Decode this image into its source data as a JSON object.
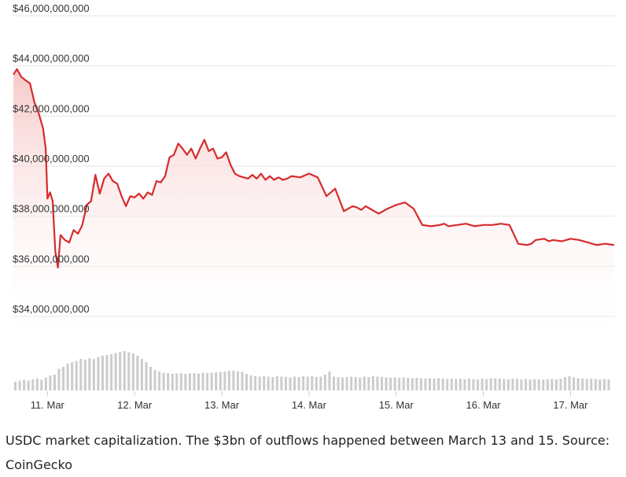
{
  "chart_data": {
    "type": "area",
    "title": "",
    "xlabel": "",
    "ylabel": "",
    "y_ticks": [
      {
        "value": 46000000000,
        "label": "$46,000,000,000"
      },
      {
        "value": 44000000000,
        "label": "$44,000,000,000"
      },
      {
        "value": 42000000000,
        "label": "$42,000,000,000"
      },
      {
        "value": 40000000000,
        "label": "$40,000,000,000"
      },
      {
        "value": 38000000000,
        "label": "$38,000,000,000"
      },
      {
        "value": 36000000000,
        "label": "$36,000,000,000"
      },
      {
        "value": 34000000000,
        "label": "$34,000,000,000"
      }
    ],
    "ylim": [
      32700000000,
      46200000000
    ],
    "x_ticks": [
      {
        "day": 11,
        "label": "11. Mar"
      },
      {
        "day": 12,
        "label": "12. Mar"
      },
      {
        "day": 13,
        "label": "13. Mar"
      },
      {
        "day": 14,
        "label": "14. Mar"
      },
      {
        "day": 15,
        "label": "15. Mar"
      },
      {
        "day": 16,
        "label": "16. Mar"
      },
      {
        "day": 17,
        "label": "17. Mar"
      }
    ],
    "xlim": [
      10.6,
      17.51
    ],
    "grid": true,
    "colors": {
      "line": "#d62c2c",
      "area_top": "#f6c6c6",
      "grid": "#e6e6e6",
      "volume": "#cccccc"
    },
    "series": [
      {
        "x": [
          10.61,
          10.65,
          10.7,
          10.75,
          10.8,
          10.85,
          10.9,
          10.95,
          10.98,
          11.0,
          11.03,
          11.06,
          11.09,
          11.12,
          11.15,
          11.2,
          11.25,
          11.3,
          11.35,
          11.4,
          11.45,
          11.5,
          11.55,
          11.6,
          11.65,
          11.7,
          11.75,
          11.8,
          11.85,
          11.9,
          11.95,
          12.0,
          12.05,
          12.1,
          12.15,
          12.2,
          12.25,
          12.3,
          12.35,
          12.4,
          12.45,
          12.5,
          12.55,
          12.6,
          12.65,
          12.7,
          12.75,
          12.8,
          12.85,
          12.9,
          12.95,
          13.0,
          13.05,
          13.1,
          13.15,
          13.2,
          13.25,
          13.3,
          13.35,
          13.4,
          13.45,
          13.5,
          13.55,
          13.6,
          13.65,
          13.7,
          13.75,
          13.8,
          13.9,
          14.0,
          14.1,
          14.2,
          14.3,
          14.4,
          14.5,
          14.55,
          14.6,
          14.65,
          14.7,
          14.75,
          14.8,
          14.9,
          15.0,
          15.1,
          15.2,
          15.3,
          15.4,
          15.5,
          15.55,
          15.6,
          15.7,
          15.8,
          15.9,
          16.0,
          16.1,
          16.2,
          16.3,
          16.4,
          16.5,
          16.55,
          16.6,
          16.7,
          16.75,
          16.8,
          16.9,
          16.95,
          17.0,
          17.1,
          17.2,
          17.3,
          17.4,
          17.5
        ],
        "y": [
          43650000000,
          43870000000,
          43560000000,
          43420000000,
          43300000000,
          42550000000,
          42100000000,
          41500000000,
          40700000000,
          38700000000,
          38950000000,
          38600000000,
          36600000000,
          35950000000,
          37250000000,
          37050000000,
          36950000000,
          37450000000,
          37300000000,
          37650000000,
          38450000000,
          38600000000,
          39650000000,
          38900000000,
          39500000000,
          39700000000,
          39400000000,
          39300000000,
          38800000000,
          38400000000,
          38800000000,
          38750000000,
          38900000000,
          38700000000,
          38950000000,
          38850000000,
          39400000000,
          39350000000,
          39600000000,
          40350000000,
          40450000000,
          40900000000,
          40700000000,
          40450000000,
          40700000000,
          40300000000,
          40700000000,
          41050000000,
          40600000000,
          40700000000,
          40300000000,
          40350000000,
          40550000000,
          40050000000,
          39700000000,
          39600000000,
          39550000000,
          39500000000,
          39650000000,
          39500000000,
          39700000000,
          39450000000,
          39600000000,
          39450000000,
          39550000000,
          39450000000,
          39500000000,
          39600000000,
          39550000000,
          39700000000,
          39550000000,
          38800000000,
          39100000000,
          38200000000,
          38400000000,
          38350000000,
          38250000000,
          38400000000,
          38300000000,
          38200000000,
          38100000000,
          38300000000,
          38450000000,
          38550000000,
          38300000000,
          37650000000,
          37600000000,
          37650000000,
          37700000000,
          37600000000,
          37650000000,
          37700000000,
          37600000000,
          37650000000,
          37650000000,
          37700000000,
          37650000000,
          36900000000,
          36850000000,
          36900000000,
          37050000000,
          37100000000,
          37000000000,
          37050000000,
          37000000000,
          37050000000,
          37100000000,
          37050000000,
          36950000000,
          36850000000,
          36900000000,
          36850000000
        ]
      }
    ],
    "volume": [
      0.22,
      0.25,
      0.27,
      0.25,
      0.28,
      0.3,
      0.27,
      0.33,
      0.38,
      0.4,
      0.55,
      0.6,
      0.68,
      0.72,
      0.75,
      0.8,
      0.78,
      0.82,
      0.8,
      0.85,
      0.88,
      0.9,
      0.92,
      0.95,
      0.98,
      1.0,
      0.97,
      0.94,
      0.88,
      0.8,
      0.72,
      0.6,
      0.52,
      0.48,
      0.45,
      0.44,
      0.42,
      0.43,
      0.44,
      0.42,
      0.43,
      0.44,
      0.43,
      0.45,
      0.44,
      0.45,
      0.46,
      0.47,
      0.48,
      0.5,
      0.5,
      0.48,
      0.47,
      0.42,
      0.38,
      0.36,
      0.35,
      0.36,
      0.35,
      0.34,
      0.36,
      0.35,
      0.34,
      0.33,
      0.35,
      0.34,
      0.36,
      0.35,
      0.36,
      0.34,
      0.35,
      0.4,
      0.48,
      0.35,
      0.34,
      0.33,
      0.34,
      0.35,
      0.34,
      0.33,
      0.35,
      0.34,
      0.36,
      0.35,
      0.34,
      0.33,
      0.32,
      0.33,
      0.32,
      0.33,
      0.32,
      0.31,
      0.32,
      0.31,
      0.3,
      0.31,
      0.3,
      0.31,
      0.3,
      0.29,
      0.3,
      0.29,
      0.3,
      0.28,
      0.3,
      0.29,
      0.28,
      0.3,
      0.29,
      0.3,
      0.31,
      0.3,
      0.29,
      0.28,
      0.3,
      0.29,
      0.28,
      0.29,
      0.28,
      0.29,
      0.28,
      0.27,
      0.28,
      0.29,
      0.28,
      0.3,
      0.34,
      0.36,
      0.33,
      0.31,
      0.3,
      0.29,
      0.3,
      0.29,
      0.28,
      0.29,
      0.28
    ]
  },
  "caption": "USDC market capitalization. The $3bn of outflows happened between March 13 and 15. Source: CoinGecko"
}
